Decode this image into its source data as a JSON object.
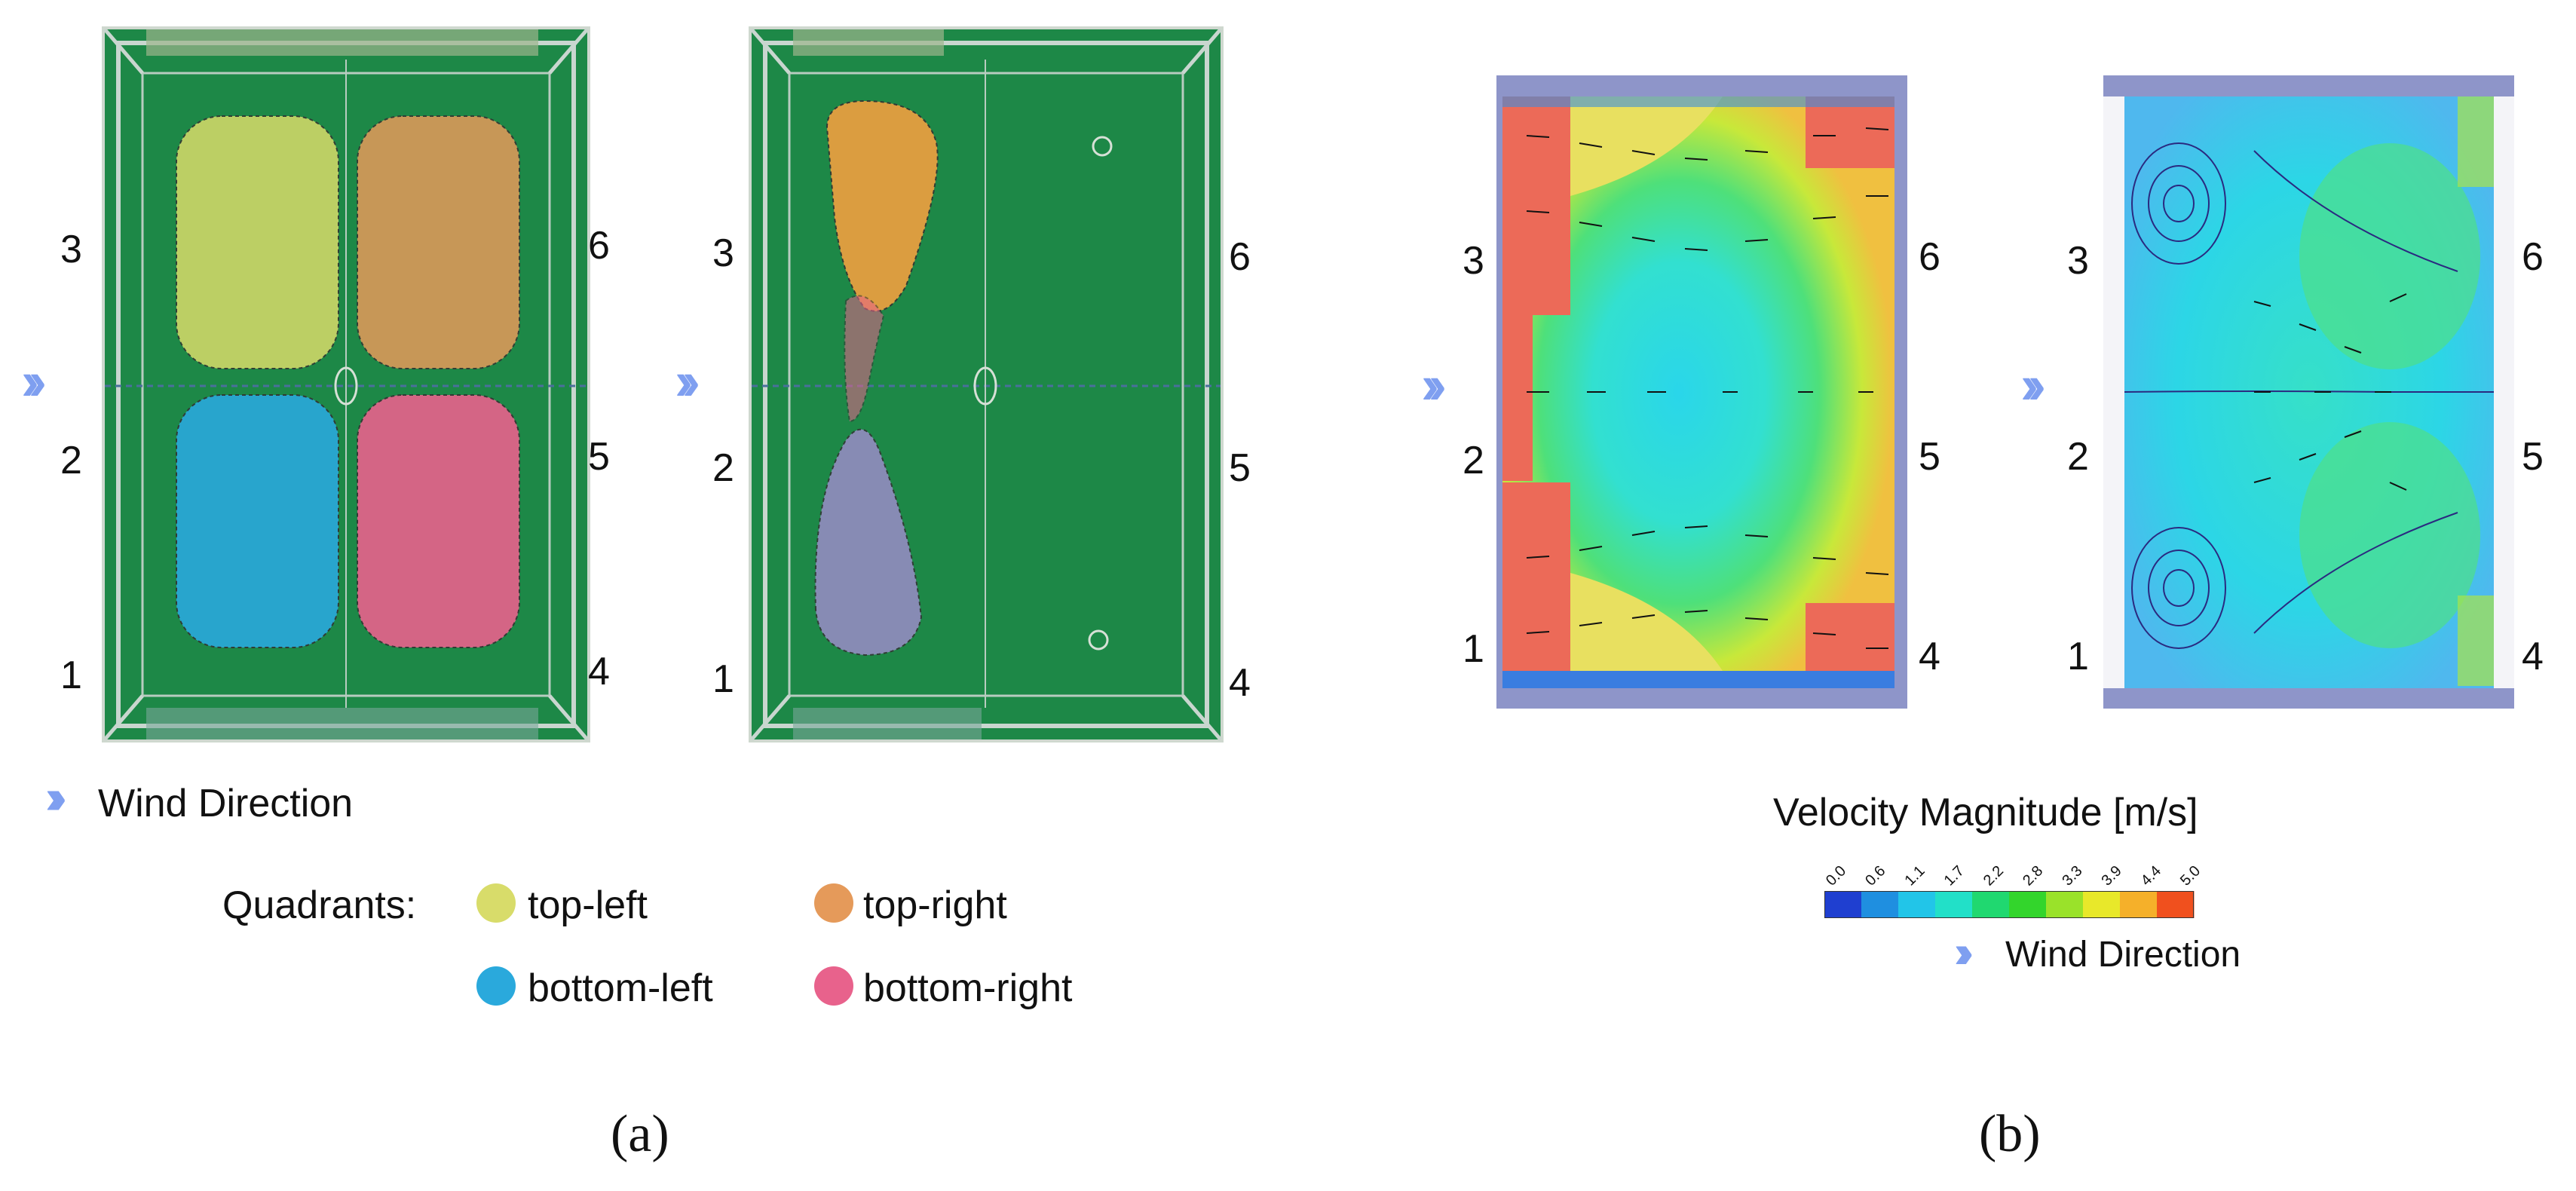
{
  "panel_a": {
    "ports": [
      "1",
      "2",
      "3",
      "4",
      "5",
      "6"
    ],
    "wind_direction_label": "Wind Direction",
    "legend": {
      "title": "Quadrants:",
      "items": [
        {
          "label": "top-left",
          "color": "#d8dc6a"
        },
        {
          "label": "top-right",
          "color": "#e59a5a"
        },
        {
          "label": "bottom-left",
          "color": "#2aa9dc"
        },
        {
          "label": "bottom-right",
          "color": "#e8628c"
        }
      ]
    },
    "caption": "(a)"
  },
  "panel_b": {
    "ports": [
      "1",
      "2",
      "3",
      "4",
      "5",
      "6"
    ],
    "colorbar": {
      "title": "Velocity Magnitude [m/s]",
      "ticks": [
        "0.0",
        "0.6",
        "1.1",
        "1.7",
        "2.2",
        "2.8",
        "3.3",
        "3.9",
        "4.4",
        "5.0"
      ],
      "colors": [
        "#1f3fd0",
        "#1f8fe0",
        "#22c5e8",
        "#22e0c8",
        "#20d870",
        "#33d52c",
        "#9ae22a",
        "#e8e82a",
        "#f5b02a",
        "#f0501e"
      ]
    },
    "wind_direction_label": "Wind Direction",
    "caption": "(b)"
  },
  "colors": {
    "chevron": "#7f9ff0",
    "photo_green": "#1f8a4a",
    "cfd_frame": "#8e95c9"
  }
}
